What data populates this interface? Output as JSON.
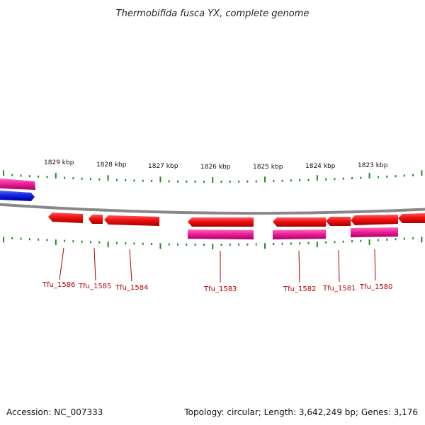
{
  "title": "Thermobifida fusca YX, complete genome",
  "scale_labels": [
    "1829 kbp",
    "1828 kbp",
    "1827 kbp",
    "1826 kbp",
    "1825 kbp",
    "1824 kbp",
    "1823 kbp"
  ],
  "gene_labels": [
    "Tfu_1586",
    "Tfu_1585",
    "Tfu_1584",
    "Tfu_1583",
    "Tfu_1582",
    "Tfu_1581",
    "Tfu_1580"
  ],
  "footer": {
    "accession": "Accession: NC_007333",
    "summary": "Topology: circular; Length: 3,642,249 bp; Genes: 3,176"
  },
  "colors": {
    "gene_red": "#ee1111",
    "gene_magenta": "#ee2299",
    "gene_blue": "#1122dd",
    "backbone": "#888888",
    "tick_green": "#228822",
    "label_red": "#b30000"
  }
}
